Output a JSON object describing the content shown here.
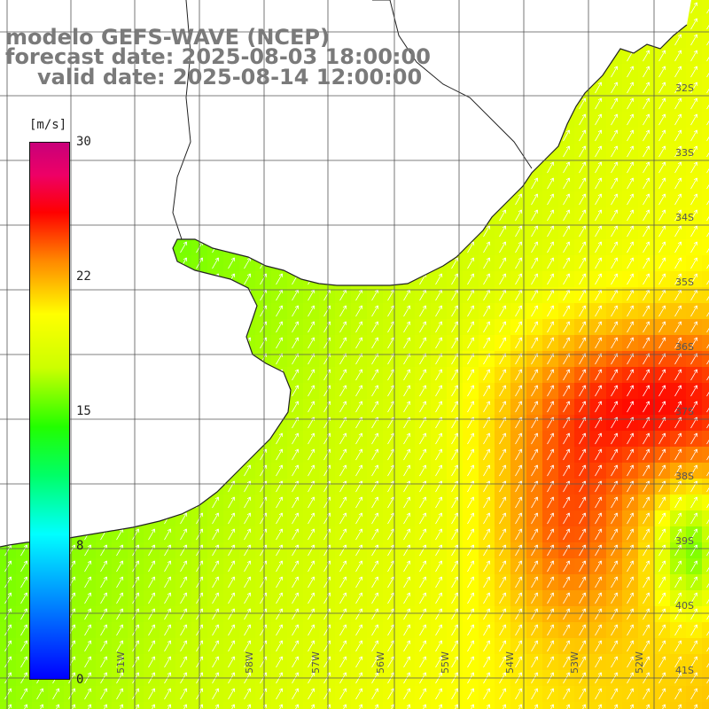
{
  "title": {
    "model": "modelo GEFS-WAVE (NCEP)",
    "forecast": "forecast date: 2025-08-03 18:00:00",
    "valid": "valid date: 2025-08-14 12:00:00"
  },
  "colorbar": {
    "unit": "[m/s]",
    "ticks": [
      "30",
      "22",
      "15",
      "8",
      "0"
    ],
    "colors": [
      "#0000ff",
      "#00aaff",
      "#00ffff",
      "#00ff66",
      "#22ff00",
      "#ccff00",
      "#ffff00",
      "#ff8800",
      "#ff0000",
      "#ee0066",
      "#c8007a"
    ]
  },
  "map": {
    "lat_labels": [
      "32S",
      "33S",
      "34S",
      "35S",
      "36S",
      "37S",
      "38S",
      "39S",
      "40S",
      "41S"
    ],
    "lon_labels": [
      "58W",
      "57W",
      "56W",
      "55W",
      "54W",
      "53W",
      "52W",
      "51W"
    ],
    "land_color": "#ffffff",
    "grid_color": "#555555",
    "arrow_color": "#ffffff",
    "wind_direction": "from south-southwest"
  }
}
